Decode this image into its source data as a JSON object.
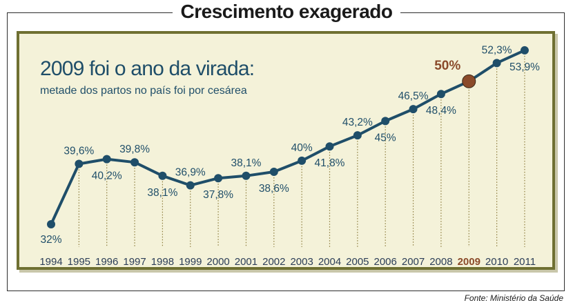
{
  "headline": "Crescimento exagerado",
  "source": "Fonte: Ministério da Saúde",
  "colors": {
    "line": "#1f4e69",
    "highlight": "#8a4a2a",
    "panel": "#f4f2d9",
    "border": "#6f7032"
  },
  "chart_data": {
    "type": "line",
    "title": "2009 foi o ano da virada:",
    "subtitle": "metade dos partos no país foi por cesárea",
    "categories": [
      "1994",
      "1995",
      "1996",
      "1997",
      "1998",
      "1999",
      "2000",
      "2001",
      "2002",
      "2003",
      "2004",
      "2005",
      "2006",
      "2007",
      "2008",
      "2009",
      "2010",
      "2011"
    ],
    "series": [
      {
        "values": [
          32,
          39.6,
          40.2,
          39.8,
          38.1,
          36.9,
          37.8,
          38.1,
          38.6,
          40,
          41.8,
          43.2,
          45,
          46.5,
          48.4,
          50,
          52.3,
          53.9
        ],
        "labels": [
          "32%",
          "39,6%",
          "40,2%",
          "39,8%",
          "38,1%",
          "36,9%",
          "37,8%",
          "38,1%",
          "38,6%",
          "40%",
          "41,8%",
          "43,2%",
          "45%",
          "46,5%",
          "48,4%",
          "50%",
          "52,3%",
          "53,9%"
        ]
      }
    ],
    "highlight_category": "2009",
    "label_positions": [
      "below",
      "above",
      "below",
      "above",
      "below",
      "above",
      "below",
      "above",
      "below",
      "above",
      "below",
      "above",
      "below",
      "above",
      "below",
      "left",
      "above",
      "below"
    ],
    "grid": false
  }
}
